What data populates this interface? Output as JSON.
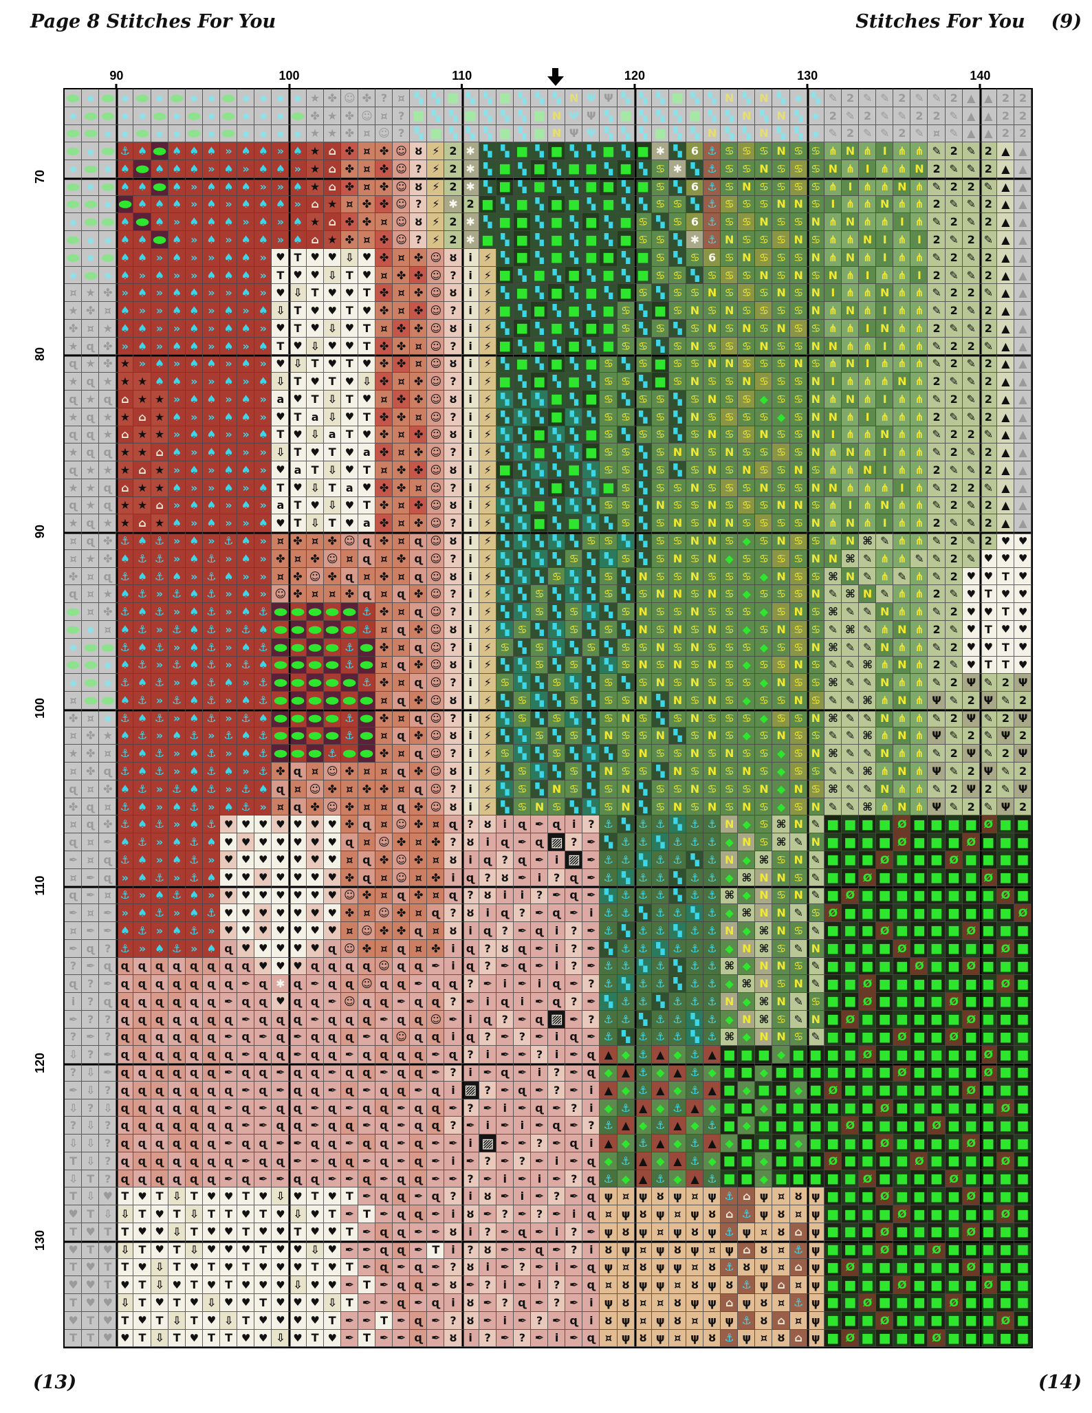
{
  "page": {
    "header_left": "Page 8  Stitches For You",
    "header_right": "Stitches For You",
    "header_right_page": "(9)",
    "footer_left": "(13)",
    "footer_right": "(14)"
  },
  "axis": {
    "top_labels": [
      {
        "label": "90",
        "col_index": 4
      },
      {
        "label": "100",
        "col_index": 14
      },
      {
        "label": "110",
        "col_index": 24
      },
      {
        "label": "120",
        "col_index": 34
      },
      {
        "label": "130",
        "col_index": 44
      },
      {
        "label": "140",
        "col_index": 54
      }
    ],
    "left_labels": [
      {
        "label": "70",
        "row_index": 6
      },
      {
        "label": "80",
        "row_index": 16
      },
      {
        "label": "90",
        "row_index": 26
      },
      {
        "label": "100",
        "row_index": 36
      },
      {
        "label": "110",
        "row_index": 46
      },
      {
        "label": "120",
        "row_index": 56
      },
      {
        "label": "130",
        "row_index": 66
      }
    ]
  },
  "marker": {
    "icon": "center-arrow-down",
    "col_index": 29
  },
  "grid": {
    "cols": 56,
    "rows_count": 71,
    "first_stitch_col": 87,
    "first_stitch_row": 65,
    "gridline_color": "#6b6b6b",
    "bold_line_color": "#000000",
    "palette": {
      "A": {
        "bg": "#c6c6c6",
        "fg": "#9a9a9a",
        "s": "★"
      },
      "B": {
        "bg": "#c6c6c6",
        "fg": "#9a9a9a",
        "s": "✤"
      },
      "C": {
        "bg": "#c6c6c6",
        "fg": "#9a9a9a",
        "s": "ɋ"
      },
      "D": {
        "bg": "#c6c6c6",
        "fg": "#9a9a9a",
        "s": "?"
      },
      "E": {
        "bg": "#c6c6c6",
        "fg": "#9a9a9a",
        "s": "i"
      },
      "F": {
        "bg": "#c6c6c6",
        "fg": "#9a9a9a",
        "s": "☺"
      },
      "G": {
        "bg": "#c6c6c6",
        "fg": "#9a9a9a",
        "s": "T"
      },
      "H": {
        "bg": "#c6c6c6",
        "fg": "#9a9a9a",
        "s": "♥"
      },
      "I": {
        "bg": "#c6c6c6",
        "fg": "#9a9a9a",
        "s": "✒"
      },
      "J": {
        "bg": "#c6c6c6",
        "fg": "#9a9a9a",
        "s": "⇩"
      },
      "K": {
        "bg": "#c6c6c6",
        "fg": "#9a9a9a",
        "s": "¤"
      },
      "L": {
        "bg": "#c6c6c6",
        "fg": "#9a9a9a",
        "s": "▲"
      },
      "M": {
        "bg": "#c6c6c6",
        "fg": "#9a9a9a",
        "s": "✎"
      },
      "N": {
        "bg": "#c6c6c6",
        "fg": "#9a9a9a",
        "s": "2"
      },
      "O": {
        "bg": "#c6c6c6",
        "fg": "#8ee28e",
        "s": "●",
        "cls": "oval"
      },
      "P": {
        "bg": "#c6c6c6",
        "fg": "#8ce2e8",
        "s": "●",
        "cls": "dot"
      },
      "Q": {
        "bg": "#c6c6c6",
        "fg": "#8ce2e8",
        "s": "▚"
      },
      "R": {
        "bg": "#c6c6c6",
        "fg": "#a5e8a5",
        "s": "■",
        "cls": "sq"
      },
      "S": {
        "bg": "#c6c6c6",
        "fg": "#e6df70",
        "s": "N"
      },
      "U": {
        "bg": "#c6c6c6",
        "fg": "#9a9a9a",
        "s": "Ψ"
      },
      "=": {
        "bg": "#c6c6c6",
        "fg": "#8ce2e8",
        "s": "Ψ"
      },
      "a": {
        "bg": "#a93b30",
        "fg": "#3cd6e8",
        "s": "♠"
      },
      "b": {
        "bg": "#a93b30",
        "fg": "#3cd6e8",
        "s": "»"
      },
      "c": {
        "bg": "#a93b30",
        "fg": "#3cd6e8",
        "s": "⚓"
      },
      "e": {
        "bg": "#5c2138",
        "fg": "#2ee62e",
        "s": "●",
        "cls": "oval"
      },
      "<": {
        "bg": "#a93b30",
        "fg": "#2ee62e",
        "s": "●",
        "cls": "oval"
      },
      "f": {
        "bg": "#b34a3c",
        "fg": "#111111",
        "s": "★"
      },
      "g": {
        "bg": "#a93b30",
        "fg": "#f2ead8",
        "s": "⌂"
      },
      "h": {
        "bg": "#c4574a",
        "fg": "#111111",
        "s": "✤"
      },
      "i": {
        "bg": "#cd7f64",
        "fg": "#111111",
        "s": "¤"
      },
      "j": {
        "bg": "#cd7f64",
        "fg": "#111111",
        "s": "✤"
      },
      "k": {
        "bg": "#d89a8a",
        "fg": "#111111",
        "s": "☺"
      },
      "l": {
        "bg": "#d89a8a",
        "fg": "#111111",
        "s": "ɋ"
      },
      "m": {
        "bg": "#e9c9bc",
        "fg": "#111111",
        "s": "ȣ"
      },
      "n": {
        "bg": "#e9c9bc",
        "fg": "#111111",
        "s": "?"
      },
      "p": {
        "bg": "#dcaaa3",
        "fg": "#111111",
        "s": "ɋ"
      },
      "q": {
        "bg": "#e8e4cc",
        "fg": "#111111",
        "s": "i"
      },
      "r": {
        "bg": "#f4f1e6",
        "fg": "#111111",
        "s": "♥",
        "cls": "hrt"
      },
      "s": {
        "bg": "#f4f1e6",
        "fg": "#111111",
        "s": "T"
      },
      "t": {
        "bg": "#e8e4cc",
        "fg": "#111111",
        "s": "⇩"
      },
      "u": {
        "bg": "#f4f1e6",
        "fg": "#111111",
        "s": "a"
      },
      "v": {
        "bg": "#151515",
        "fg": "#f4f1e6",
        "s": "▨",
        "cls": "sq"
      },
      "w": {
        "bg": "#a9a98a",
        "fg": "#f7f7f0",
        "s": "✱"
      },
      "x": {
        "bg": "#31502f",
        "fg": "#3cd6e8",
        "s": "▚"
      },
      "y": {
        "bg": "#31502f",
        "fg": "#2ee62e",
        "s": "■",
        "cls": "sq"
      },
      "z": {
        "bg": "#233c1e",
        "fg": "#2ee62e",
        "s": "■",
        "cls": "sq"
      },
      "0": {
        "bg": "#5d8a4d",
        "fg": "#f0e832",
        "s": "♋"
      },
      "1": {
        "bg": "#8a9545",
        "fg": "#f0e832",
        "s": "♋"
      },
      "2": {
        "bg": "#5d8a4d",
        "fg": "#f0e832",
        "s": "N"
      },
      "3": {
        "bg": "#7fa96a",
        "fg": "#f0e832",
        "s": "⋔"
      },
      "4": {
        "bg": "#b8c795",
        "fg": "#111111",
        "s": "✎"
      },
      "5": {
        "bg": "#b8c795",
        "fg": "#111111",
        "s": "2"
      },
      "6": {
        "bg": "#d6d8ba",
        "fg": "#111111",
        "s": "▲"
      },
      "7": {
        "bg": "#5d8a4d",
        "fg": "#f0e832",
        "s": "I"
      },
      "8": {
        "bg": "#2c7a5e",
        "fg": "#3cd6e8",
        "s": "▚"
      },
      "9": {
        "bg": "#a9a98a",
        "fg": "#111111",
        "s": "Ψ"
      },
      "!": {
        "bg": "#e2bd93",
        "fg": "#111111",
        "s": "ψ"
      },
      "@": {
        "bg": "#e2bd93",
        "fg": "#111111",
        "s": "ȣ"
      },
      ":": {
        "bg": "#e2bd93",
        "fg": "#111111",
        "s": "¤"
      },
      "#": {
        "bg": "#1c2414",
        "fg": "#2ee62e",
        "s": "■",
        "cls": "sq"
      },
      "$": {
        "bg": "#6b3a26",
        "fg": "#2ee62e",
        "s": "Ø"
      },
      "%": {
        "bg": "#9a5f48",
        "fg": "#3cd6e8",
        "s": "⚓"
      },
      "^": {
        "bg": "#9a5f48",
        "fg": "#f2ead8",
        "s": "⌂"
      },
      "&": {
        "bg": "#4a7140",
        "fg": "#3cd6e8",
        "s": "⚓"
      },
      "*": {
        "bg": "#dcaaa3",
        "fg": "#f7f7f0",
        "s": "✱"
      },
      "(": {
        "bg": "#d8c28a",
        "fg": "#111111",
        "s": "⚡"
      },
      "-": {
        "bg": "#9a4a3a",
        "fg": "#111111",
        "s": "▲"
      },
      "+": {
        "bg": "#a9a98a",
        "fg": "#f0e832",
        "s": "N"
      },
      "[": {
        "bg": "#8a9545",
        "fg": "#f7f7f0",
        "s": "6"
      },
      "]": {
        "bg": "#5d8a4d",
        "fg": "#2ee62e",
        "s": "◆"
      },
      "}": {
        "bg": "#b8c795",
        "fg": "#111111",
        "s": "⌘"
      },
      "|": {
        "bg": "#dcaaa3",
        "fg": "#111111",
        "s": "i"
      },
      ".": {
        "bg": "#dcaaa3",
        "fg": "#111111",
        "s": "✒"
      },
      "?": {
        "bg": "#e9c9bc",
        "fg": "#111111",
        "s": "♥",
        "cls": "hrt"
      }
    },
    "rows": [
      "OPOPOPOPPOPPPPABFBDKQQRQQRQQQS=UQQQRQQSQSQPQMNMMNMMNLLNN",
      "POOPPOPOPOPPPOBABFKDRQQRQQQRS=UQRQQQRQQSQSQPNMNMMNNMLLNN",
      "OOPPOPPOPOPPPPAABKFDQRQQQRQRSU=QQQRQQSQQSQQPMNMMNMKMLLNN",
      "OPOcaeaaabaabafghijkm(5wxxyxzxxyxzwx[%01020032373345456L",
      "POPaeaaababaabfgjihkn(5wxyxzxyyxzx0wx%00201023733254456L",
      "OPOaaeabaaabbafghijkm(5wxzxyxxyzxy0x[%02001037332345546L",
      "OOPeaaababaaabgfijhkn(w5zxyxzyxyxx00x%10022073323354456L",
      "POOaeabaaababafghjikm(5wxyzxyxzxy0x0[%01200232337345456L",
      "OPPaaeababaabagfjihkn(5wyxzxyxyxz00xw%20012033273754546L",
      "OPOaababbaabrsrrtrhijkmq(xzxyxyzxy0x0[02100232373345456L",
      "POPababbaaabsrrtsrijhknq(zxyxzxyxy00x010202023733754456L",
      "KABbabaabbabrtsrrshijkmq(xyxzxyxz0x00201020273323345546L",
      "ABKabbaababatsrrsrjihknq(yxzxyxy0xz02020100232373345456L",
      "BKAaabbabaabrsrtrsihjkmq(xzxyxzy0x0x0202021033723354456L",
      "ACBbabaababasrtrrshjiknq(zxyxzxy00x02010200223373345546L",
      "CABfbabaababrtsrsrjhikmq(xyxzxy0x0z00221002032733345456L",
      "ACAffaabbabatsrsrthijknq(yxzxyx00xz02002100273332354456L",
      "CACgffbaababurstsrihjkmq(8x8yxz0x00x0201]00232373345456L",
      "ACAfgfabbaabrsutrshjiknq(x8xz8x00x0x20100]0223733354456L",
      "CCAgffbaabbasrtusrjihkmq(8xz8xy0x00x0201200273323345546L",
      "ACCffgabaabbtsrsruhijknq(x8yx8z00x022020010232373345456L",
      "CAAfgfbabaabrustrsijhkmq(zx8xy800x0x0202102033273354456L",
      "AACgffabbabasrtsurhjiknq(x8xzx8y0x002010200223337345546L",
      "CACffgbaababusrtrsjihkmq(8xyx8x00x200201022037323345456L",
      "ACAfgfababbarstsruhijknq(x8zxy8x0x020220100232373354456L",
      "KCBcacbabcabijijkljilkmq(x8x8x008x00220]021032}4334545rr",
      "KABaccbacbabjijkilijlknq(8x8x0x80x0202]001022}4334454rrr",
      "BKCcacabcabbijkjlijilkmq(x8x08x0x2002000]210}2434345rrsr",
      "CKAacbcacbabkjiijliljknq(8x0x8x0x022020]00124}243354rsrr",
      "OKBcacbacbace<e<ecjilknq(x80x08x02002000]120}4423345rrsr",
      "OPKacbcacbca<e<e<ciljkmq(80x80x0x202020]02104}432354rsrr",
      "POOcacbacbace<e<cejilknq(0x08x0x00202000]012}4423345rrsr",
      "OOPacbcacbca<e<eceiljkmq(x80x0x80202020]012044}32354rssr",
      "POPcacbacabce<e<ecjilknq(08x08x0x0202000]210}44233459459",
      "KOOacbcacbac<e<e<eiljkmq(x08x0x002x2020]002144}323945945",
      "BKPcacbacbcae<e<cejilknq(80x08x020x02000]102}44233459459",
      "KBAacbacbcac<e<eceiljkmq(x80x0x2002x020]021044}323945495",
      "ABKcacbacbace<ec<ejilknq(08x0x8x020020200]12}44233459459",
      "KBCcacbacabcjlikjiiljkmq(x08x0x200x202020]1044}323945945",
      "CKBacbcacbcalikjijjilknq(80x20x02x0020002]21}44233459549",
      "BCKcabacbacbiljkjiiljkmq(x020x802x0202020]1244}323945495",
      "KCBcacbac?rr?r?rjlikjipnm|p.p|n&x&&8&&+]0}24#z#z$##z#$z#",
      "CKIacbacar?rrr?rlikjijnm|p.pvn.x&&8&&&]+0}42z#z#$#z#$#z#",
      "IKCcabacb?rrrr?riljkjim|pnp.|v.&&8&&x&+]}024#z#$z##$z#z#",
      "KICbacbcarr?rrr?jlikij|pnm.|np.&8&&x&&]}+204z#$#z#z#z$##",
      "CIKcbacab?rrrrr?kjiljipnm||n.p.8&&&x&&}]+024#$z#z##z#z$#",
      "IKIbacbacrr?rr?rjikjilnm|pn.p.|&&x&&8&]}+240$#z#z#z##z#$",
      "KIIacbacb?r?rrr?ikjjlim|pn.p|n.&x&&8&&+]}204#z#$z##z$#z#",
      "ICDcbacbap?rrr?pkjilij|pnmp.|n.x&&8&&&]+}042z#z#$#z#z#$#",
      "DIClplpllpp?r?ppplkpl.|pn.p.|n.&&8&x&&}]+204#z#z#$z#$#z#",
      "CDIplpllpp.p*p.plkpl.ppn.|.|p.n&8&&x&&]}+024#z$#z##z#z$#",
      "EDClpllpp.pp?pp.kpl.pln.|p|.pn.8&&x&&&+]}240z#$#z#z$##z#",
      "IDDpllpplp.ppp.ppl.plk.|pn.pv.n&&x&&8&]+}042#$z#z##z$z##",
      "DIDllpplp.p.p.ppl.pkpl|pn.n.|p.&x&&&8&}]+204z#z#$##$#z#z",
      "JDIplplplp.pp.pp.plpl.pn|..n|.p-]&-]&-#z#]z##z$#z#z##$#z",
      "DJIlpllpl.pp.pp.pl.pl.n|.p.|n.p]-&]-&]z#]#z#z#z#$##z#$z#",
      "IJDpllplpp.p.pp.l.pl.p|vn.p.n.|-]&-]&-#]z#]#$#z#z#z#$#z#",
      "JDJllpplp.p.pp.p.pl.pl.n.|.p.n|]&-]&-]z#]#z##z#$#z#z#z$#",
      "DJDplpllpp..pp.pl.p.pln.|.|.p.n&-]&-]&#]z#z#z$#z##$#z#z#",
      "JJDlppllp.pp..pp.lp.l..|v..n.p|-]&-]&-]#z#]z#z#$z##z$##z",
      "GJDpllplpp.pp..pl.p.l.|.n.n.|.p]&-]-&]#z]#z#$#z#z$z#z#$#",
      "JGDlplplp.p..pp..l.pl..n.|.|.np&]-&]-&z#]z###z$#z##$z#z#",
      "GJHsrstsrrsrtrsrs.pl.pn|m.|.n.p!:!@!:!%^!:@!#z#$z#z#$#z#",
      "HGJtsrstssrsrtrs.s.pl.|m.n.n.|p:!@!:!@^%!@:!z#z#$##z#z$#",
      "GHGsrrtsrrsrrsrrs.lp..m|n.p.|n.!@!:!@!%!:@^!#z#$#z#z$#z#",
      "HGHtsrstrrrsrrtr..pl.s|nm..p.n|@!:!@!:!^@:%!z#z$#z$##z#z",
      "GHGsrtsrsrsrrrsrs.l.p.nm|.n.|.p!:@!!:@%@!:^!#$z#z#z#$z##",
      "HHGrstrsrsrrrtrr.s.pl.m.n|.|n.p:@!!:@!@%!^:!z#z#$##z#$#z",
      "GHHtsrsrtrrsrrrts..l.p|m.np.n.|!@::@!!^!@:%!#z$#z#z$#z#z",
      "HGHsrstsrtsrrrrs..s.l.nm.|.n.p|@!:!@:!!%@^:!z#z$#z#z#z$#",
      "GGHrstsrssrrtrsr.s..l.m|n.n.|.p:!@!:!@%!:@^!#$z#z#$z#z##"
    ]
  }
}
